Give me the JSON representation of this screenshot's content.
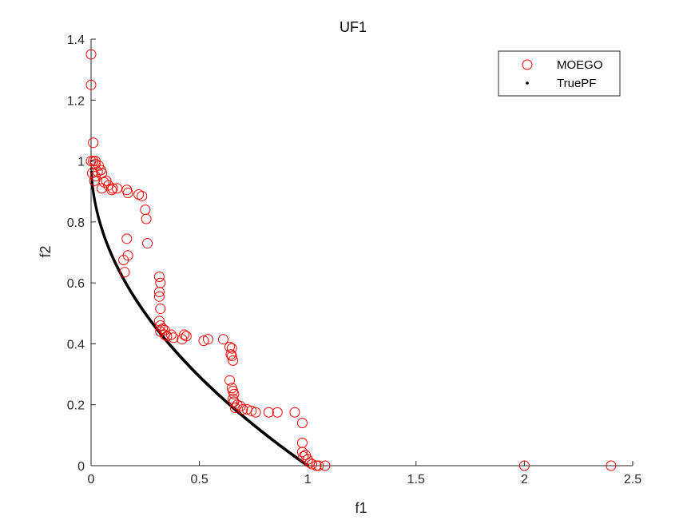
{
  "chart_data": {
    "type": "scatter",
    "title": "UF1",
    "xlabel": "f1",
    "ylabel": "f2",
    "xlim": [
      0,
      2.5
    ],
    "ylim": [
      0,
      1.4
    ],
    "xticks": [
      0,
      0.5,
      1,
      1.5,
      2,
      2.5
    ],
    "yticks": [
      0,
      0.2,
      0.4,
      0.6,
      0.8,
      1,
      1.2,
      1.4
    ],
    "xtick_labels": [
      "0",
      "0.5",
      "1",
      "1.5",
      "2",
      "2.5"
    ],
    "ytick_labels": [
      "0",
      "0.2",
      "0.4",
      "0.6",
      "0.8",
      "1",
      "1.2",
      "1.4"
    ],
    "grid": false,
    "legend_position": "top-right",
    "series": [
      {
        "name": "MOEGO",
        "marker": "open-circle",
        "color": "#ff0000",
        "points": [
          [
            0.0,
            1.35
          ],
          [
            0.0,
            1.25
          ],
          [
            0.01,
            1.06
          ],
          [
            0.0,
            1.0
          ],
          [
            0.01,
            1.0
          ],
          [
            0.02,
            1.0
          ],
          [
            0.005,
            0.96
          ],
          [
            0.02,
            0.99
          ],
          [
            0.035,
            0.985
          ],
          [
            0.03,
            0.965
          ],
          [
            0.05,
            0.96
          ],
          [
            0.045,
            0.97
          ],
          [
            0.02,
            0.95
          ],
          [
            0.015,
            0.935
          ],
          [
            0.06,
            0.93
          ],
          [
            0.07,
            0.935
          ],
          [
            0.05,
            0.91
          ],
          [
            0.08,
            0.92
          ],
          [
            0.095,
            0.905
          ],
          [
            0.1,
            0.91
          ],
          [
            0.12,
            0.91
          ],
          [
            0.165,
            0.905
          ],
          [
            0.17,
            0.895
          ],
          [
            0.22,
            0.89
          ],
          [
            0.235,
            0.885
          ],
          [
            0.25,
            0.84
          ],
          [
            0.255,
            0.81
          ],
          [
            0.165,
            0.745
          ],
          [
            0.26,
            0.73
          ],
          [
            0.17,
            0.69
          ],
          [
            0.15,
            0.675
          ],
          [
            0.155,
            0.635
          ],
          [
            0.315,
            0.62
          ],
          [
            0.32,
            0.6
          ],
          [
            0.315,
            0.57
          ],
          [
            0.315,
            0.555
          ],
          [
            0.32,
            0.515
          ],
          [
            0.315,
            0.475
          ],
          [
            0.32,
            0.46
          ],
          [
            0.33,
            0.45
          ],
          [
            0.34,
            0.445
          ],
          [
            0.34,
            0.43
          ],
          [
            0.32,
            0.44
          ],
          [
            0.35,
            0.425
          ],
          [
            0.37,
            0.43
          ],
          [
            0.38,
            0.42
          ],
          [
            0.42,
            0.415
          ],
          [
            0.43,
            0.43
          ],
          [
            0.44,
            0.425
          ],
          [
            0.52,
            0.41
          ],
          [
            0.54,
            0.415
          ],
          [
            0.61,
            0.415
          ],
          [
            0.64,
            0.39
          ],
          [
            0.65,
            0.385
          ],
          [
            0.645,
            0.365
          ],
          [
            0.65,
            0.36
          ],
          [
            0.655,
            0.345
          ],
          [
            0.64,
            0.28
          ],
          [
            0.65,
            0.255
          ],
          [
            0.655,
            0.245
          ],
          [
            0.66,
            0.235
          ],
          [
            0.655,
            0.22
          ],
          [
            0.66,
            0.21
          ],
          [
            0.675,
            0.2
          ],
          [
            0.665,
            0.19
          ],
          [
            0.69,
            0.195
          ],
          [
            0.7,
            0.185
          ],
          [
            0.72,
            0.185
          ],
          [
            0.74,
            0.18
          ],
          [
            0.76,
            0.175
          ],
          [
            0.82,
            0.175
          ],
          [
            0.86,
            0.175
          ],
          [
            0.94,
            0.175
          ],
          [
            0.975,
            0.14
          ],
          [
            0.975,
            0.075
          ],
          [
            0.975,
            0.045
          ],
          [
            0.98,
            0.03
          ],
          [
            0.99,
            0.035
          ],
          [
            1.0,
            0.02
          ],
          [
            1.01,
            0.01
          ],
          [
            1.02,
            0.005
          ],
          [
            1.04,
            0.0
          ],
          [
            1.05,
            0.0
          ],
          [
            1.08,
            0.0
          ],
          [
            2.0,
            0.0
          ],
          [
            2.4,
            0.0
          ]
        ]
      },
      {
        "name": "TruePF",
        "marker": "dot",
        "color": "#000000",
        "function": "f2 = 1 - sqrt(f1)",
        "x_range": [
          0,
          1
        ]
      }
    ]
  }
}
